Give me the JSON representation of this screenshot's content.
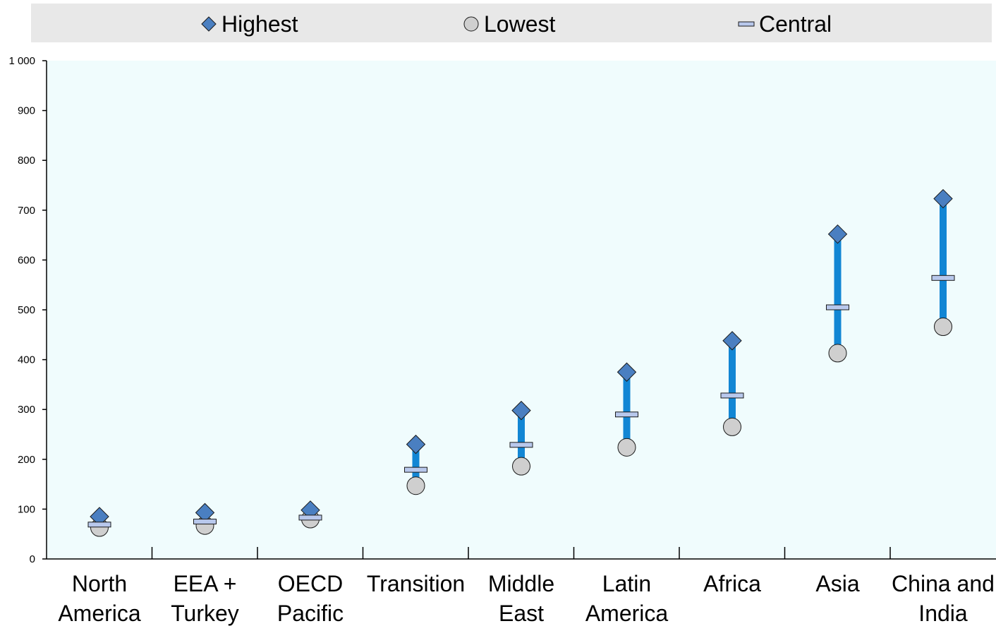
{
  "chart_data": {
    "type": "range",
    "categories": [
      [
        "North",
        "America"
      ],
      [
        "EEA +",
        "Turkey"
      ],
      [
        "OECD",
        "Pacific"
      ],
      [
        "Transition"
      ],
      [
        "Middle",
        "East"
      ],
      [
        "Latin",
        "America"
      ],
      [
        "Africa"
      ],
      [
        "Asia"
      ],
      [
        "China and",
        "India"
      ]
    ],
    "series": [
      {
        "name": "Highest",
        "marker": "diamond",
        "values": [
          85,
          93,
          98,
          230,
          298,
          375,
          438,
          652,
          723
        ]
      },
      {
        "name": "Lowest",
        "marker": "circle",
        "values": [
          63,
          67,
          80,
          147,
          186,
          224,
          265,
          413,
          466
        ]
      },
      {
        "name": "Central",
        "marker": "dash",
        "values": [
          69,
          75,
          83,
          179,
          229,
          290,
          328,
          505,
          564
        ]
      }
    ],
    "ylim": [
      0,
      1000
    ],
    "yticks": [
      0,
      100,
      200,
      300,
      400,
      500,
      600,
      700,
      800,
      900,
      1000
    ],
    "ytick_labels": [
      "0",
      "100",
      "200",
      "300",
      "400",
      "500",
      "600",
      "700",
      "800",
      "900",
      "1 000"
    ],
    "grid": false,
    "legend_position": "top",
    "colors": {
      "plot_background": "#f0fcfd",
      "legend_background": "#e8e8e8",
      "range_bar": "#1286d4",
      "highest_marker": "#4a7fc1",
      "lowest_marker": "#cfcfcf",
      "central_marker": "#b8c8ec",
      "marker_stroke": "#1a1a1a"
    }
  }
}
